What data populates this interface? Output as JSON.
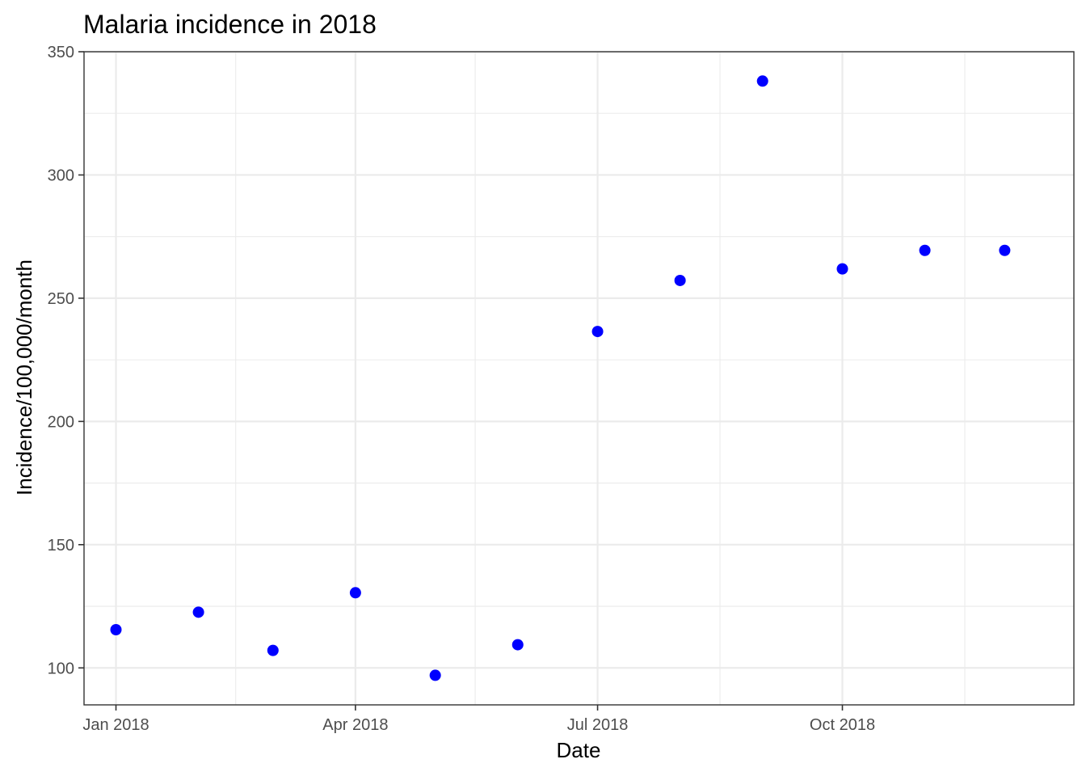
{
  "chart_data": {
    "type": "scatter",
    "title": "Malaria incidence in 2018",
    "xlabel": "Date",
    "ylabel": "Incidence/100,000/month",
    "x_type": "date",
    "xlim": [
      "2017-12-20",
      "2018-12-27"
    ],
    "ylim": [
      85,
      350
    ],
    "x_major_ticks": [
      "2018-01-01",
      "2018-04-01",
      "2018-07-01",
      "2018-10-01"
    ],
    "x_tick_labels": [
      "Jan 2018",
      "Apr 2018",
      "Jul 2018",
      "Oct 2018"
    ],
    "x_minor_ticks": [
      "2018-02-15",
      "2018-05-16",
      "2018-08-16",
      "2018-11-16"
    ],
    "y_major_ticks": [
      100,
      150,
      200,
      250,
      300,
      350
    ],
    "y_tick_labels": [
      "100",
      "150",
      "200",
      "250",
      "300",
      "350"
    ],
    "y_minor_ticks": [
      125,
      175,
      225,
      275,
      325
    ],
    "grid": true,
    "point_color": "#0000ff",
    "series": [
      {
        "x": [
          "2018-01-01",
          "2018-02-01",
          "2018-03-01",
          "2018-04-01",
          "2018-05-01",
          "2018-06-01",
          "2018-07-01",
          "2018-08-01",
          "2018-09-01",
          "2018-10-01",
          "2018-11-01",
          "2018-12-01"
        ],
        "y": [
          115.5,
          122.6,
          107.1,
          130.5,
          97.0,
          109.4,
          236.5,
          257.2,
          338.1,
          261.9,
          269.4,
          269.4
        ]
      }
    ]
  }
}
